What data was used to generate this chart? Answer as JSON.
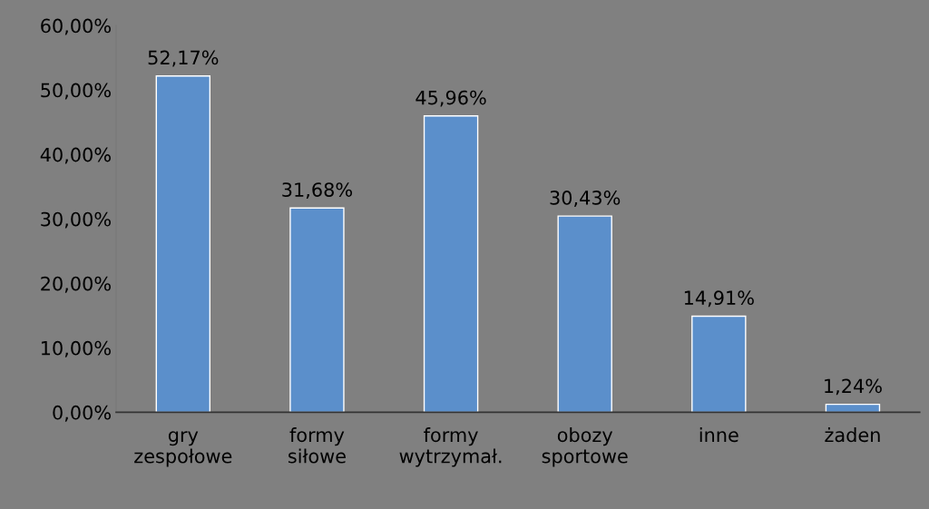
{
  "chart_data": {
    "type": "bar",
    "categories": [
      "gry\nzespołowe",
      "formy\nsiłowe",
      "formy\nwytrzymał.",
      "obozy\nsportowe",
      "inne",
      "żaden"
    ],
    "values": [
      52.17,
      31.68,
      45.96,
      30.43,
      14.91,
      1.24
    ],
    "value_labels": [
      "52,17%",
      "31,68%",
      "45,96%",
      "30,43%",
      "14,91%",
      "1,24%"
    ],
    "color": "#5b8fcb",
    "ylim": [
      0,
      60
    ],
    "yticks": [
      {
        "value": 0,
        "label": "0,00%"
      },
      {
        "value": 10,
        "label": "10,00%"
      },
      {
        "value": 20,
        "label": "20,00%"
      },
      {
        "value": 30,
        "label": "30,00%"
      },
      {
        "value": 40,
        "label": "40,00%"
      },
      {
        "value": 50,
        "label": "50,00%"
      },
      {
        "value": 60,
        "label": "60,00%"
      }
    ],
    "grid": false,
    "legend": false
  }
}
